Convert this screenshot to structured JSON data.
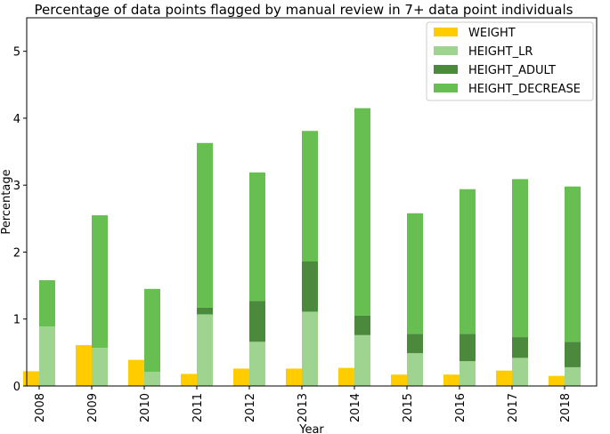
{
  "chart_data": {
    "type": "bar",
    "title": "Percentage of data points flagged by manual review in 7+ data point individuals",
    "xlabel": "Year",
    "ylabel": "Percentage",
    "ylim": [
      0,
      5.5
    ],
    "yticks": [
      "0",
      "1",
      "2",
      "3",
      "4",
      "5"
    ],
    "categories": [
      "2008",
      "2009",
      "2010",
      "2011",
      "2012",
      "2013",
      "2014",
      "2015",
      "2016",
      "2017",
      "2018"
    ],
    "legend_position": "top-right",
    "grid": false,
    "series": [
      {
        "name": "WEIGHT",
        "color": "#ffcc00",
        "stack": "left",
        "values": [
          0.22,
          0.61,
          0.39,
          0.18,
          0.26,
          0.26,
          0.27,
          0.17,
          0.17,
          0.23,
          0.15
        ]
      },
      {
        "name": "HEIGHT_LR",
        "color": "#9ed490",
        "stack": "right",
        "values": [
          0.89,
          0.57,
          0.21,
          1.07,
          0.66,
          1.11,
          0.76,
          0.49,
          0.37,
          0.42,
          0.28
        ]
      },
      {
        "name": "HEIGHT_ADULT",
        "color": "#4b8a3d",
        "stack": "right",
        "values": [
          0.0,
          0.0,
          0.0,
          0.1,
          0.61,
          0.75,
          0.29,
          0.29,
          0.41,
          0.31,
          0.38
        ]
      },
      {
        "name": "HEIGHT_DECREASE",
        "color": "#66bf50",
        "stack": "right",
        "values": [
          0.69,
          1.98,
          1.24,
          2.46,
          1.92,
          1.95,
          3.1,
          1.8,
          2.16,
          2.36,
          2.32
        ]
      }
    ]
  }
}
